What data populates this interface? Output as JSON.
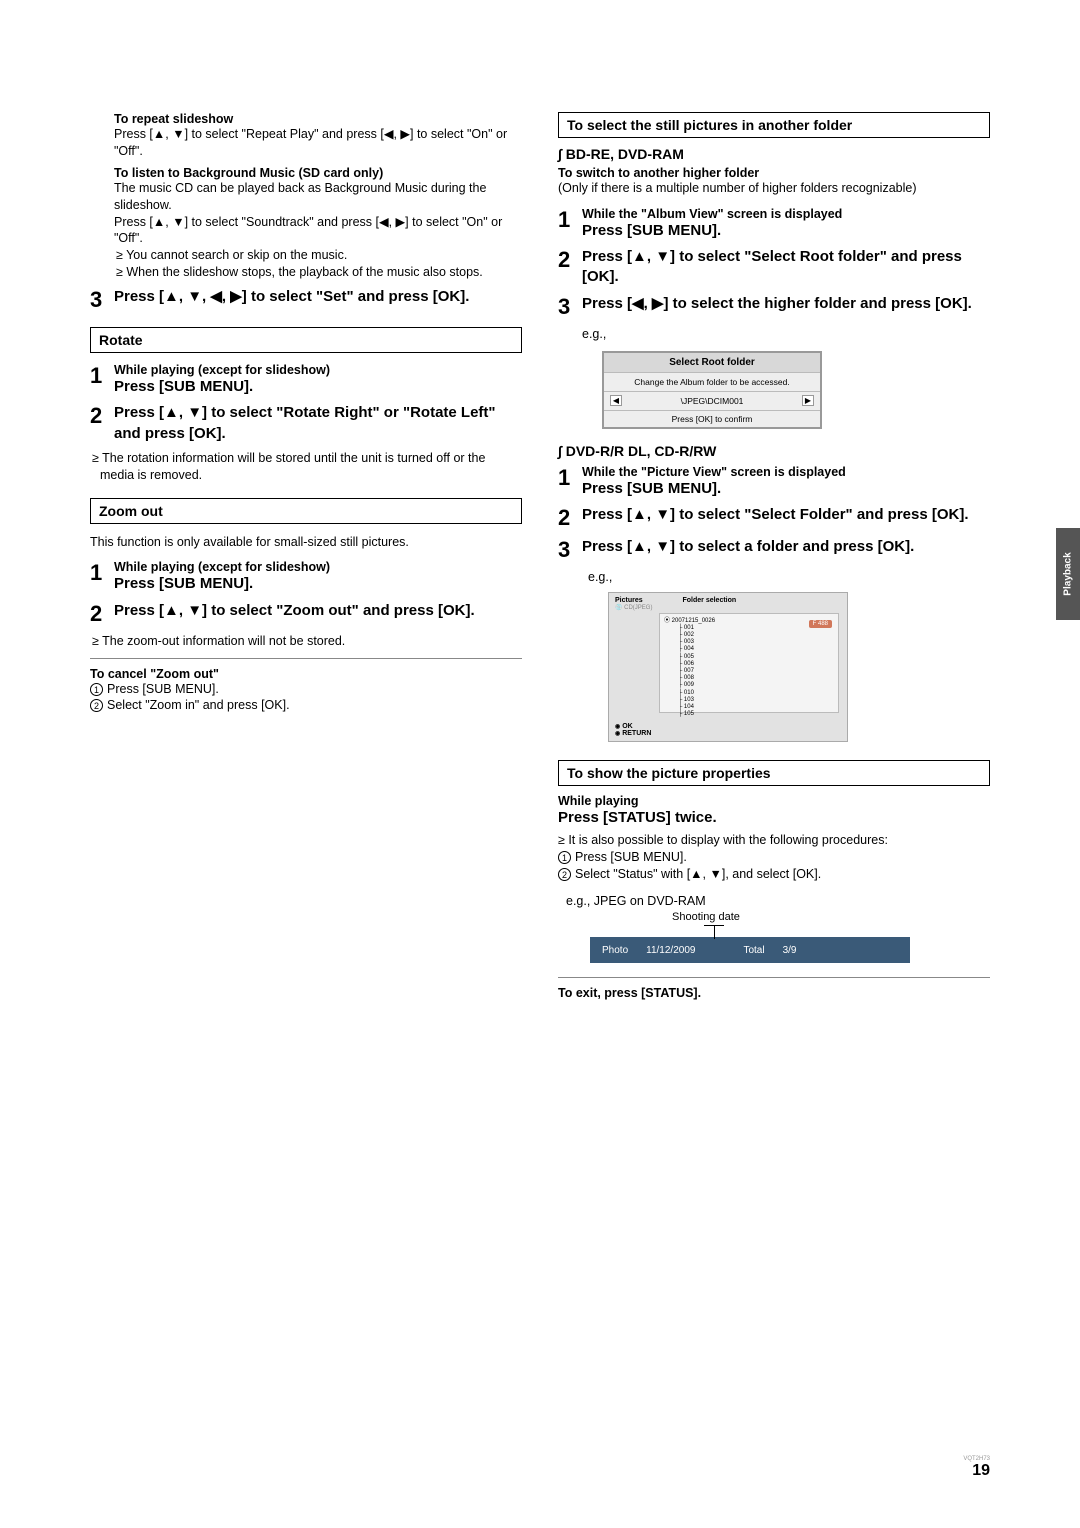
{
  "left": {
    "repeat_head": "To repeat slideshow",
    "repeat_body": "Press [▲, ▼] to select \"Repeat Play\" and press [◀, ▶] to select \"On\" or \"Off\".",
    "bgm_head": "To listen to Background Music (SD card only)",
    "bgm_body1": "The music CD can be played back as Background Music during the slideshow.",
    "bgm_body2": "Press [▲, ▼] to select \"Soundtrack\" and press [◀, ▶] to select \"On\" or \"Off\".",
    "bgm_bullet1": "≥ You cannot search or skip on the music.",
    "bgm_bullet2": "≥ When the slideshow stops, the playback of the music also stops.",
    "step3": "Press [▲, ▼, ◀, ▶] to select \"Set\" and press [OK].",
    "rotate_title": "Rotate",
    "rotate_s1_small": "While playing (except for slideshow)",
    "rotate_s1_bold": "Press [SUB MENU].",
    "rotate_s2": "Press [▲, ▼] to select \"Rotate Right\" or \"Rotate Left\" and press [OK].",
    "rotate_bullet": "≥ The rotation information will be stored until the unit is turned off or the media is removed.",
    "zoom_title": "Zoom out",
    "zoom_intro": "This function is only available for small-sized still pictures.",
    "zoom_s1_small": "While playing (except for slideshow)",
    "zoom_s1_bold": "Press [SUB MENU].",
    "zoom_s2": "Press [▲, ▼] to select \"Zoom out\" and press [OK].",
    "zoom_bullet": "≥ The zoom-out information will not be stored.",
    "cancel_head": "To cancel \"Zoom out\"",
    "cancel_1": "Press [SUB MENU].",
    "cancel_2": "Select \"Zoom in\" and press [OK]."
  },
  "right": {
    "sel_title": "To select the still pictures in another folder",
    "bdre": "BD-RE, DVD-RAM",
    "switch_head": "To switch to another higher folder",
    "switch_body": "(Only if there is a multiple number of higher folders recognizable)",
    "bd_s1_small": "While the \"Album View\" screen is displayed",
    "bd_s1_bold": "Press [SUB MENU].",
    "bd_s2": "Press [▲, ▼] to select \"Select Root folder\" and press [OK].",
    "bd_s3": "Press [◀, ▶] to select the higher folder and press [OK].",
    "eg": "e.g.,",
    "root_t": "Select Root folder",
    "root_m": "Change the Album folder to be accessed.",
    "root_path": "\\JPEG\\DCIM001",
    "root_b": "Press [OK] to confirm",
    "dvdr": "DVD-R/R DL, CD-R/RW",
    "dv_s1_small": "While the \"Picture View\" screen is displayed",
    "dv_s1_bold": "Press [SUB MENU].",
    "dv_s2": "Press [▲, ▼] to select \"Select Folder\" and press [OK].",
    "dv_s3": "Press [▲, ▼] to select a folder and press [OK].",
    "eg2": "e.g.,",
    "fd_hdr1": "Pictures",
    "fd_hdr2": "Folder selection",
    "fd_sub": "CD(JPEG)",
    "fd_badge": "F 488",
    "fd_foot1": "OK",
    "fd_foot2": "RETURN",
    "tree_root": "20071215_0026",
    "tree_items": [
      "001",
      "002",
      "003",
      "004",
      "005",
      "006",
      "007",
      "008",
      "009",
      "010",
      " ",
      "103",
      "104",
      "105"
    ],
    "prop_title": "To show the picture properties",
    "prop_small": "While playing",
    "prop_bold": "Press [STATUS] twice.",
    "prop_bullet": "≥ It is also possible to display with the following procedures:",
    "prop_1": "Press [SUB MENU].",
    "prop_2": "Select \"Status\" with [▲, ▼], and select [OK].",
    "prop_eg": "e.g., JPEG on DVD-RAM",
    "shoot": "Shooting date",
    "bar_photo": "Photo",
    "bar_date": "11/12/2009",
    "bar_total": "Total",
    "bar_count": "3/9",
    "exit": "To exit, press [STATUS]."
  },
  "side_tab": "Playback",
  "page_num": "19",
  "doc_code": "VQT2H73"
}
